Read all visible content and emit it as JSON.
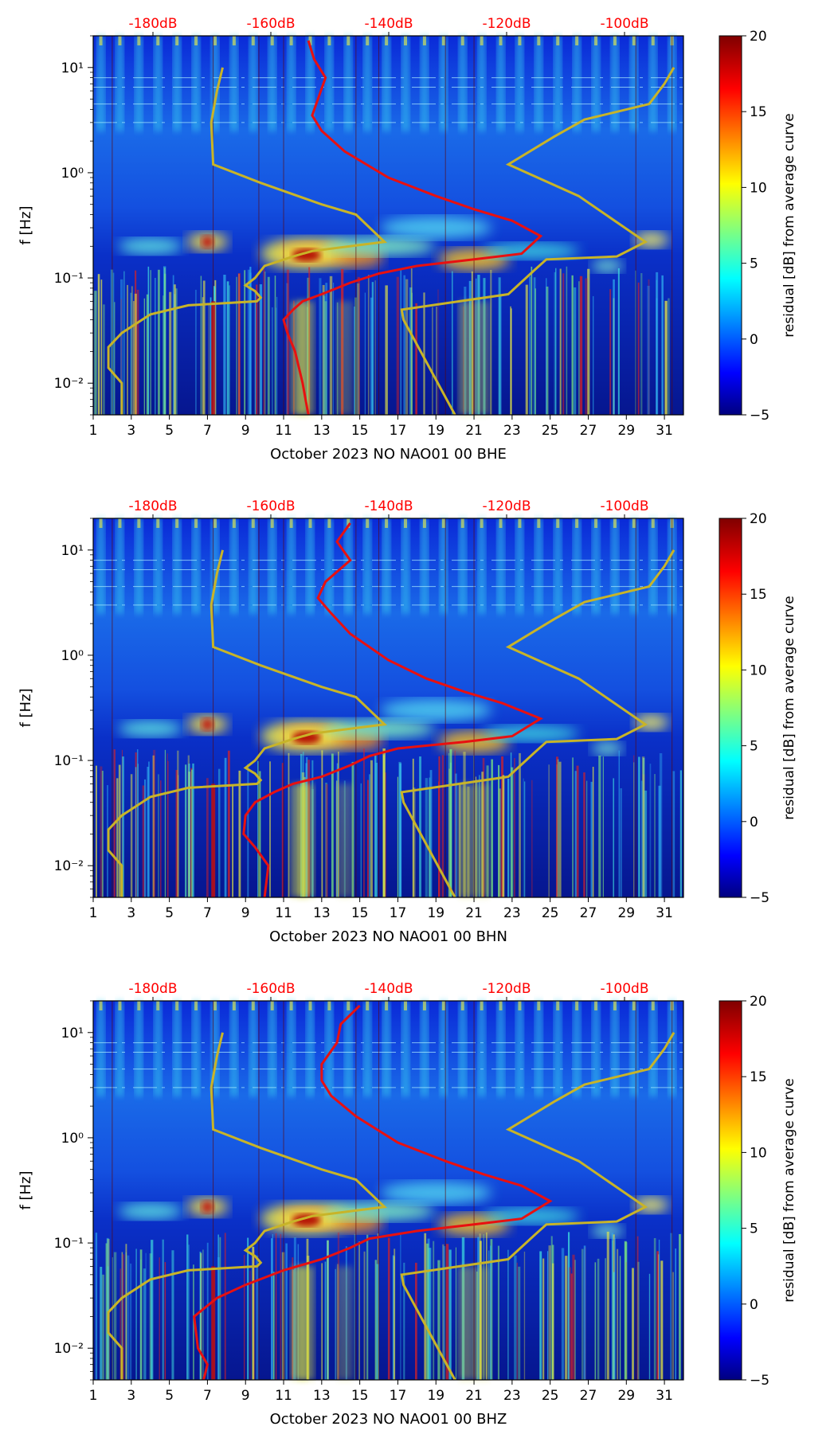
{
  "figure": {
    "colorbar_ticks": [
      "20",
      "15",
      "10",
      "5",
      "0",
      "−5"
    ],
    "colorbar_label": "residual [dB] from average curve",
    "colors": {
      "top_axis_text": "#ff0000",
      "psd_curve": "#e81010",
      "noise_model": "#c8b428"
    }
  },
  "chart_data": [
    {
      "type": "heatmap",
      "xlabel": "October 2023 NO NAO01 00 BHE",
      "ylabel": "f [Hz]",
      "x_ticks": [
        "1",
        "3",
        "5",
        "7",
        "9",
        "11",
        "13",
        "15",
        "17",
        "19",
        "21",
        "23",
        "25",
        "27",
        "29",
        "31"
      ],
      "y_ticks": [
        "10⁻²",
        "10⁻¹",
        "10⁰",
        "10¹"
      ],
      "top_ticks": [
        "-180dB",
        "-160dB",
        "-140dB",
        "-120dB",
        "-100dB"
      ],
      "y_scale": "log",
      "ylim": [
        0.005,
        20
      ],
      "xlim": [
        1,
        32
      ],
      "colorbar_range": [
        -5,
        20
      ],
      "psd_curve": [
        [
          12.3,
          18
        ],
        [
          12.6,
          12
        ],
        [
          13.2,
          8
        ],
        [
          12.8,
          5
        ],
        [
          12.5,
          3.5
        ],
        [
          13.0,
          2.5
        ],
        [
          14.2,
          1.6
        ],
        [
          16.5,
          0.9
        ],
        [
          19.0,
          0.6
        ],
        [
          21.0,
          0.45
        ],
        [
          23.0,
          0.35
        ],
        [
          24.5,
          0.25
        ],
        [
          23.5,
          0.17
        ],
        [
          21.0,
          0.15
        ],
        [
          18.0,
          0.13
        ],
        [
          16.0,
          0.11
        ],
        [
          14.5,
          0.09
        ],
        [
          13.0,
          0.07
        ],
        [
          12.0,
          0.06
        ],
        [
          11.5,
          0.05
        ],
        [
          11.0,
          0.04
        ],
        [
          11.2,
          0.03
        ],
        [
          11.6,
          0.02
        ],
        [
          12.0,
          0.01
        ],
        [
          12.3,
          0.005
        ]
      ]
    },
    {
      "type": "heatmap",
      "xlabel": "October 2023 NO NAO01 00 BHN",
      "ylabel": "f [Hz]",
      "x_ticks": [
        "1",
        "3",
        "5",
        "7",
        "9",
        "11",
        "13",
        "15",
        "17",
        "19",
        "21",
        "23",
        "25",
        "27",
        "29",
        "31"
      ],
      "y_ticks": [
        "10⁻²",
        "10⁻¹",
        "10⁰",
        "10¹"
      ],
      "top_ticks": [
        "-180dB",
        "-160dB",
        "-140dB",
        "-120dB",
        "-100dB"
      ],
      "y_scale": "log",
      "ylim": [
        0.005,
        20
      ],
      "xlim": [
        1,
        32
      ],
      "colorbar_range": [
        -5,
        20
      ],
      "psd_curve": [
        [
          14.5,
          18
        ],
        [
          13.8,
          12
        ],
        [
          14.5,
          8
        ],
        [
          13.2,
          5
        ],
        [
          12.8,
          3.5
        ],
        [
          13.5,
          2.5
        ],
        [
          14.5,
          1.6
        ],
        [
          16.5,
          0.9
        ],
        [
          18.5,
          0.6
        ],
        [
          20.5,
          0.45
        ],
        [
          22.5,
          0.35
        ],
        [
          24.5,
          0.25
        ],
        [
          23.0,
          0.17
        ],
        [
          20.5,
          0.15
        ],
        [
          17.0,
          0.13
        ],
        [
          15.5,
          0.11
        ],
        [
          14.5,
          0.09
        ],
        [
          13.0,
          0.07
        ],
        [
          11.5,
          0.06
        ],
        [
          10.5,
          0.05
        ],
        [
          9.5,
          0.04
        ],
        [
          9.0,
          0.03
        ],
        [
          8.9,
          0.02
        ],
        [
          9.5,
          0.015
        ],
        [
          10.2,
          0.01
        ],
        [
          10.0,
          0.005
        ]
      ]
    },
    {
      "type": "heatmap",
      "xlabel": "October 2023 NO NAO01 00 BHZ",
      "ylabel": "f [Hz]",
      "x_ticks": [
        "1",
        "3",
        "5",
        "7",
        "9",
        "11",
        "13",
        "15",
        "17",
        "19",
        "21",
        "23",
        "25",
        "27",
        "29",
        "31"
      ],
      "y_ticks": [
        "10⁻²",
        "10⁻¹",
        "10⁰",
        "10¹"
      ],
      "top_ticks": [
        "-180dB",
        "-160dB",
        "-140dB",
        "-120dB",
        "-100dB"
      ],
      "y_scale": "log",
      "ylim": [
        0.005,
        20
      ],
      "xlim": [
        1,
        32
      ],
      "colorbar_range": [
        -5,
        20
      ],
      "psd_curve": [
        [
          15.0,
          18
        ],
        [
          14.0,
          12
        ],
        [
          13.8,
          8
        ],
        [
          13.0,
          5
        ],
        [
          13.0,
          3.5
        ],
        [
          13.5,
          2.5
        ],
        [
          14.8,
          1.6
        ],
        [
          17.0,
          0.9
        ],
        [
          19.5,
          0.6
        ],
        [
          21.5,
          0.45
        ],
        [
          23.5,
          0.35
        ],
        [
          25.0,
          0.25
        ],
        [
          23.5,
          0.17
        ],
        [
          21.0,
          0.15
        ],
        [
          18.0,
          0.13
        ],
        [
          15.5,
          0.11
        ],
        [
          14.5,
          0.09
        ],
        [
          13.0,
          0.07
        ],
        [
          11.0,
          0.055
        ],
        [
          9.0,
          0.04
        ],
        [
          7.5,
          0.03
        ],
        [
          6.3,
          0.02
        ],
        [
          6.5,
          0.01
        ],
        [
          7.0,
          0.007
        ],
        [
          6.8,
          0.005
        ]
      ]
    }
  ],
  "noise_model": [
    [
      7.8,
      10
    ],
    [
      7.5,
      6
    ],
    [
      7.2,
      3
    ],
    [
      7.3,
      1.2
    ],
    [
      9.8,
      0.8
    ],
    [
      13.0,
      0.5
    ],
    [
      14.8,
      0.4
    ],
    [
      16.3,
      0.22
    ],
    [
      12.5,
      0.18
    ],
    [
      11.5,
      0.16
    ],
    [
      10.0,
      0.13
    ],
    [
      9.5,
      0.1
    ],
    [
      9.0,
      0.085
    ],
    [
      9.5,
      0.075
    ],
    [
      9.8,
      0.065
    ],
    [
      9.6,
      0.06
    ],
    [
      6.0,
      0.055
    ],
    [
      4.0,
      0.045
    ],
    [
      2.5,
      0.03
    ],
    [
      1.8,
      0.022
    ],
    [
      1.8,
      0.014
    ],
    [
      2.5,
      0.01
    ],
    [
      2.5,
      0.005
    ]
  ],
  "noise_model_high": [
    [
      31.5,
      10
    ],
    [
      31.0,
      7
    ],
    [
      30.2,
      4.5
    ],
    [
      26.8,
      3.2
    ],
    [
      25.2,
      2.2
    ],
    [
      22.8,
      1.2
    ],
    [
      26.5,
      0.6
    ],
    [
      30.0,
      0.22
    ],
    [
      28.5,
      0.16
    ],
    [
      24.8,
      0.15
    ],
    [
      24.2,
      0.12
    ],
    [
      22.8,
      0.07
    ],
    [
      17.2,
      0.05
    ],
    [
      17.3,
      0.04
    ],
    [
      20.0,
      0.005
    ]
  ]
}
